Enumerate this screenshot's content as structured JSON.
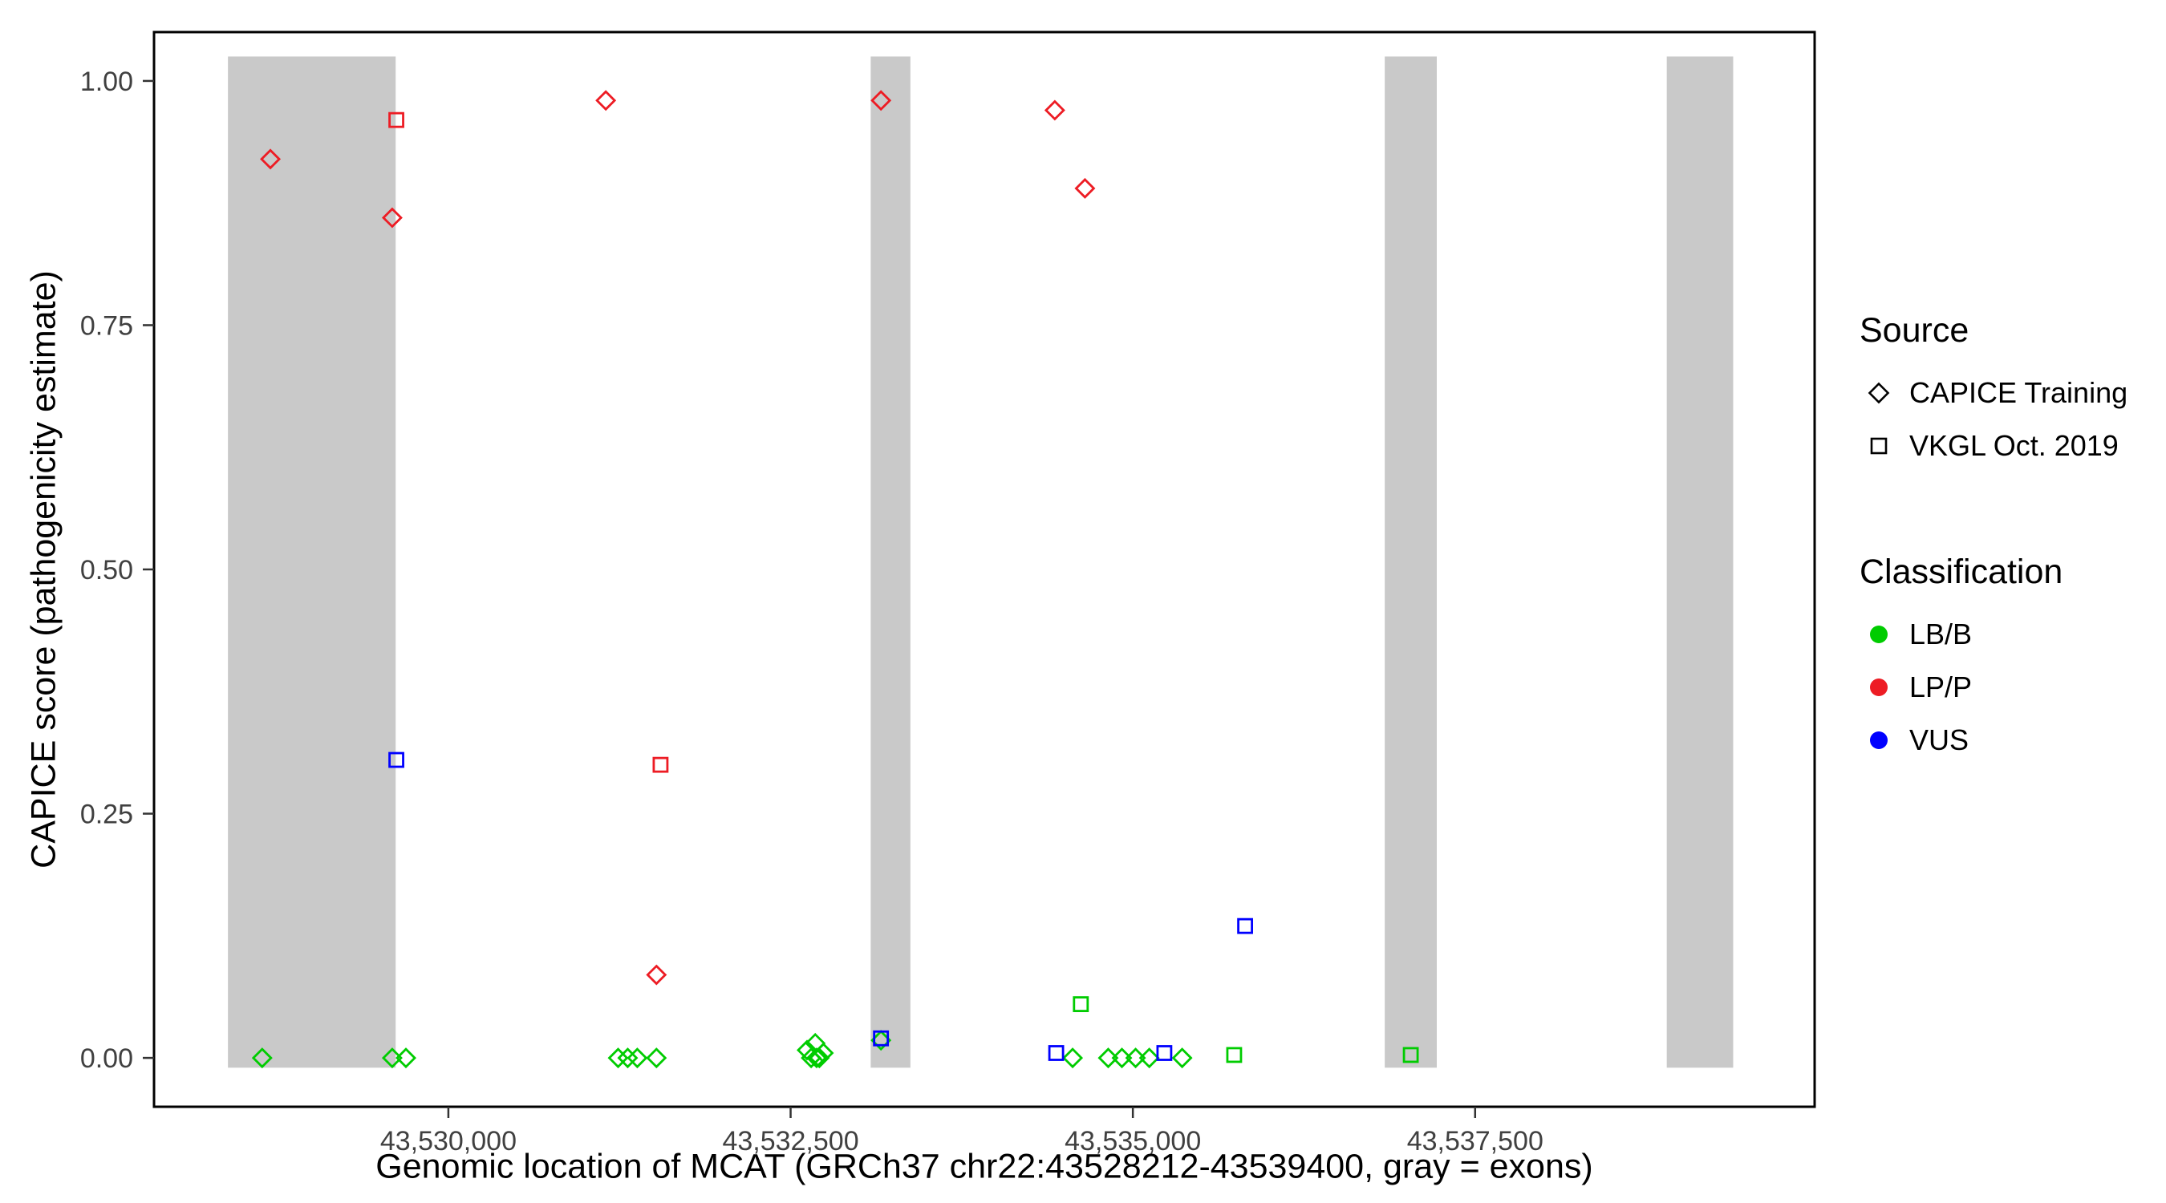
{
  "chart_data": {
    "type": "scatter",
    "xlabel": "Genomic location of MCAT (GRCh37 chr22:43528212-43539400, gray = exons)",
    "ylabel": "CAPICE score (pathogenicity estimate)",
    "xlim": [
      43527850,
      43539980
    ],
    "ylim": [
      -0.05,
      1.05
    ],
    "band_ymin": -0.01,
    "band_ymax": 1.025,
    "grid": "off",
    "legend_position": "right",
    "colors": {
      "exon_gray": "#C9C9C9",
      "panel_border": "#000000",
      "tick_text": "#404040",
      "lbb_green": "#00CC00",
      "lpp_red": "#ED1C24",
      "vus_blue": "#0000FF"
    },
    "x_ticks": [
      {
        "value": 43530000,
        "label": "43,530,000"
      },
      {
        "value": 43532500,
        "label": "43,532,500"
      },
      {
        "value": 43535000,
        "label": "43,535,000"
      },
      {
        "value": 43537500,
        "label": "43,537,500"
      }
    ],
    "y_ticks": [
      {
        "value": 0.0,
        "label": "0.00"
      },
      {
        "value": 0.25,
        "label": "0.25"
      },
      {
        "value": 0.5,
        "label": "0.50"
      },
      {
        "value": 0.75,
        "label": "0.75"
      },
      {
        "value": 1.0,
        "label": "1.00"
      }
    ],
    "exon_bands": [
      {
        "start": 43528390,
        "end": 43529615
      },
      {
        "start": 43533085,
        "end": 43533375
      },
      {
        "start": 43536840,
        "end": 43537220
      },
      {
        "start": 43538900,
        "end": 43539385
      }
    ],
    "series": [
      {
        "name": "CAPICE Training / LP_P",
        "source": "CAPICE Training",
        "classification": "LP/P",
        "marker": "diamond",
        "color": "#ED1C24",
        "points": [
          [
            43528700,
            0.92
          ],
          [
            43529590,
            0.86
          ],
          [
            43531150,
            0.98
          ],
          [
            43533160,
            0.98
          ],
          [
            43534430,
            0.97
          ],
          [
            43534650,
            0.89
          ],
          [
            43531520,
            0.085
          ]
        ]
      },
      {
        "name": "CAPICE Training / LB_B",
        "source": "CAPICE Training",
        "classification": "LB/B",
        "marker": "diamond",
        "color": "#00CC00",
        "points": [
          [
            43528640,
            0.0
          ],
          [
            43529590,
            0.0
          ],
          [
            43529690,
            0.0
          ],
          [
            43531240,
            0.0
          ],
          [
            43531310,
            0.0
          ],
          [
            43531380,
            0.0
          ],
          [
            43531520,
            0.0
          ],
          [
            43532620,
            0.008
          ],
          [
            43532650,
            0.0
          ],
          [
            43532680,
            0.015
          ],
          [
            43532710,
            0.0
          ],
          [
            43532740,
            0.005
          ],
          [
            43532690,
            0.0
          ],
          [
            43533160,
            0.018
          ],
          [
            43534560,
            0.0
          ],
          [
            43534820,
            0.0
          ],
          [
            43534920,
            0.0
          ],
          [
            43535020,
            0.0
          ],
          [
            43535120,
            0.0
          ],
          [
            43535360,
            0.0
          ]
        ]
      },
      {
        "name": "VKGL Oct. 2019 / LP_P",
        "source": "VKGL Oct. 2019",
        "classification": "LP/P",
        "marker": "square",
        "color": "#ED1C24",
        "points": [
          [
            43529620,
            0.96
          ],
          [
            43531550,
            0.3
          ]
        ]
      },
      {
        "name": "VKGL Oct. 2019 / VUS",
        "source": "VKGL Oct. 2019",
        "classification": "VUS",
        "marker": "square",
        "color": "#0000FF",
        "points": [
          [
            43529620,
            0.305
          ],
          [
            43533160,
            0.02
          ],
          [
            43534440,
            0.005
          ],
          [
            43535230,
            0.005
          ],
          [
            43535820,
            0.135
          ]
        ]
      },
      {
        "name": "VKGL Oct. 2019 / LB_B",
        "source": "VKGL Oct. 2019",
        "classification": "LB/B",
        "marker": "square",
        "color": "#00CC00",
        "points": [
          [
            43534620,
            0.055
          ],
          [
            43535740,
            0.003
          ],
          [
            43537030,
            0.003
          ]
        ]
      }
    ],
    "legend": {
      "source": {
        "title": "Source",
        "items": [
          {
            "label": "CAPICE Training",
            "marker": "diamond"
          },
          {
            "label": "VKGL Oct. 2019",
            "marker": "square"
          }
        ]
      },
      "classification": {
        "title": "Classification",
        "items": [
          {
            "label": "LB/B",
            "color": "#00CC00"
          },
          {
            "label": "LP/P",
            "color": "#ED1C24"
          },
          {
            "label": "VUS",
            "color": "#0000FF"
          }
        ]
      }
    }
  }
}
